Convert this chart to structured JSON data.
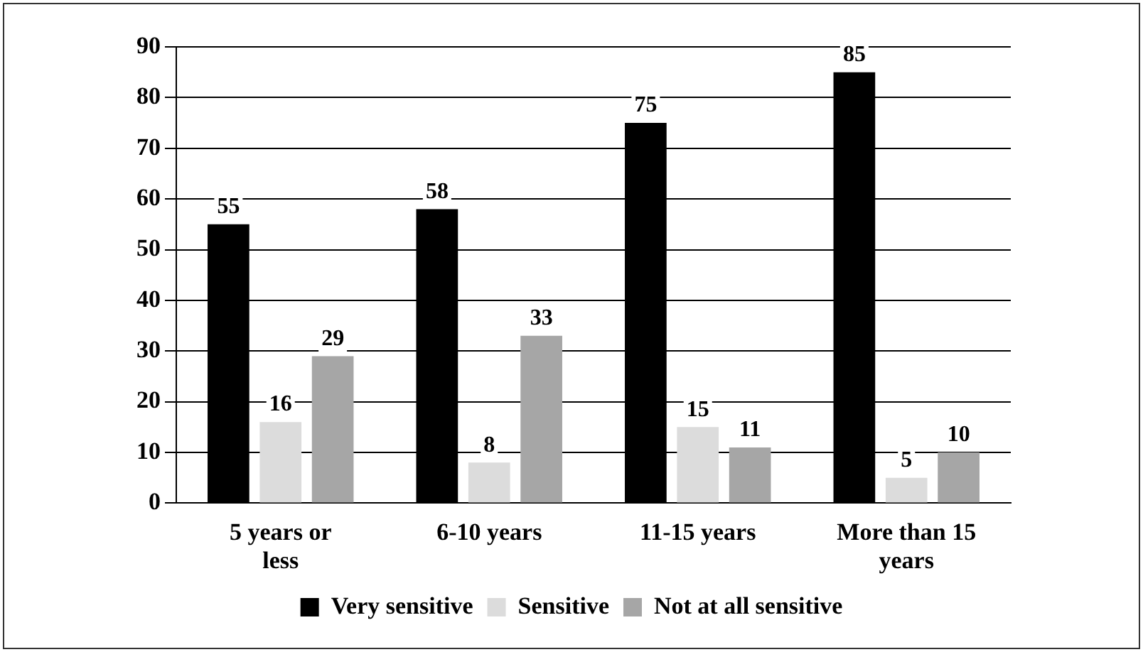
{
  "chart_data": {
    "type": "bar",
    "categories": [
      "5 years or less",
      "6-10 years",
      "11-15 years",
      "More than 15 years"
    ],
    "series": [
      {
        "name": "Very sensitive",
        "color": "#000000",
        "values": [
          55,
          58,
          75,
          85
        ]
      },
      {
        "name": "Sensitive",
        "color": "#dcdcdc",
        "values": [
          16,
          8,
          15,
          5
        ]
      },
      {
        "name": "Not at all sensitive",
        "color": "#a6a6a6",
        "values": [
          29,
          33,
          11,
          10
        ]
      }
    ],
    "ylim": [
      0,
      90
    ],
    "yticks": [
      0,
      10,
      20,
      30,
      40,
      50,
      60,
      70,
      80,
      90
    ],
    "grid": "y",
    "legend": "bottom",
    "data_labels": true
  }
}
